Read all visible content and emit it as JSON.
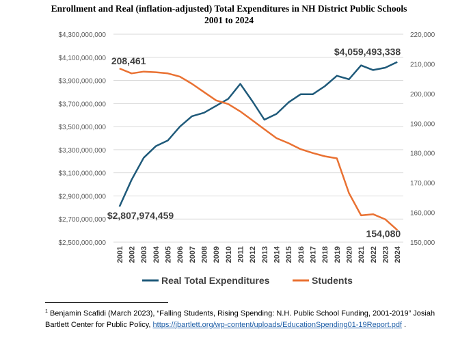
{
  "chart_data": {
    "type": "line",
    "title": "Enrollment and Real (inflation-adjusted) Total Expenditures in NH District Public Schools",
    "subtitle": "2001 to 2024",
    "categories": [
      "2001",
      "2002",
      "2003",
      "2004",
      "2005",
      "2006",
      "2007",
      "2008",
      "2009",
      "2010",
      "2011",
      "2012",
      "2013",
      "2014",
      "2015",
      "2016",
      "2017",
      "2018",
      "2019",
      "2020",
      "2021",
      "2022",
      "2023",
      "2024"
    ],
    "left_axis": {
      "ylim": [
        2500000000,
        4300000000
      ],
      "ticks": [
        "$2,500,000,000",
        "$2,700,000,000",
        "$2,900,000,000",
        "$3,100,000,000",
        "$3,300,000,000",
        "$3,500,000,000",
        "$3,700,000,000",
        "$3,900,000,000",
        "$4,100,000,000",
        "$4,300,000,000"
      ]
    },
    "right_axis": {
      "ylim": [
        150000,
        220000
      ],
      "ticks": [
        "150,000",
        "160,000",
        "170,000",
        "180,000",
        "190,000",
        "200,000",
        "210,000",
        "220,000"
      ]
    },
    "series": [
      {
        "name": "Real Total Expenditures",
        "axis": "left",
        "color": "#1f5a7a",
        "values": [
          2807974459,
          3040000000,
          3230000000,
          3330000000,
          3380000000,
          3500000000,
          3590000000,
          3620000000,
          3680000000,
          3740000000,
          3870000000,
          3720000000,
          3560000000,
          3610000000,
          3710000000,
          3780000000,
          3780000000,
          3850000000,
          3940000000,
          3910000000,
          4030000000,
          3990000000,
          4010000000,
          4059493338
        ]
      },
      {
        "name": "Students",
        "axis": "right",
        "color": "#e97132",
        "values": [
          208461,
          206800,
          207400,
          207200,
          206800,
          205700,
          203300,
          200500,
          197700,
          196500,
          194000,
          191000,
          188000,
          185000,
          183300,
          181300,
          180000,
          178900,
          178200,
          166500,
          159000,
          159400,
          157700,
          154080
        ]
      }
    ],
    "annotations": {
      "exp_start": "$2,807,974,459",
      "exp_end": "$4,059,493,338",
      "stu_start": "208,461",
      "stu_end": "154,080"
    },
    "legend": "bottom"
  },
  "footnote": {
    "number": "1",
    "text": " Benjamin Scafidi (March 2023), “Falling Students, Rising Spending: N.H. Public School Funding, 2001-2019” Josiah Bartlett Center for Public Policy, ",
    "link": "https://jbartlett.org/wp-content/uploads/EducationSpending01-19Report.pdf",
    "tail": " ."
  }
}
